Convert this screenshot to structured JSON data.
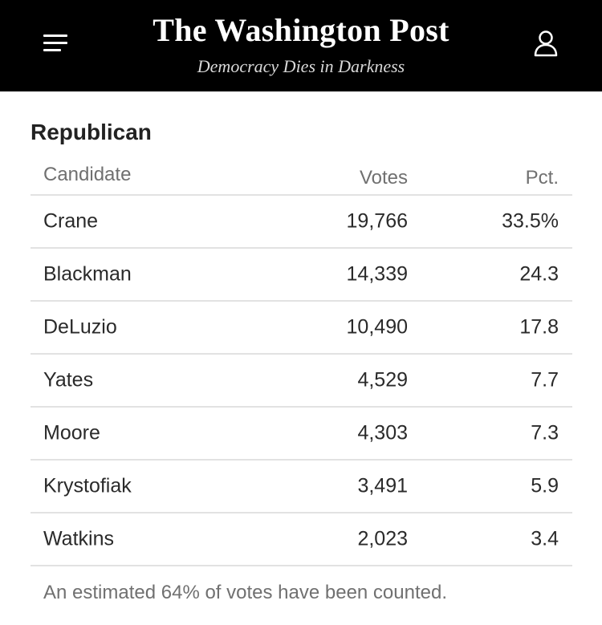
{
  "header": {
    "brand": "The Washington Post",
    "tagline": "Democracy Dies in Darkness",
    "menu_icon": "hamburger-menu-icon",
    "account_icon": "user-account-icon"
  },
  "section": {
    "title": "Republican"
  },
  "table": {
    "columns": [
      "Candidate",
      "Votes",
      "Pct."
    ],
    "rows": [
      {
        "candidate": "Crane",
        "votes": "19,766",
        "pct": "33.5%"
      },
      {
        "candidate": "Blackman",
        "votes": "14,339",
        "pct": "24.3"
      },
      {
        "candidate": "DeLuzio",
        "votes": "10,490",
        "pct": "17.8"
      },
      {
        "candidate": "Yates",
        "votes": "4,529",
        "pct": "7.7"
      },
      {
        "candidate": "Moore",
        "votes": "4,303",
        "pct": "7.3"
      },
      {
        "candidate": "Krystofiak",
        "votes": "3,491",
        "pct": "5.9"
      },
      {
        "candidate": "Watkins",
        "votes": "2,023",
        "pct": "3.4"
      }
    ]
  },
  "footnote": "An estimated 64% of votes have been counted."
}
